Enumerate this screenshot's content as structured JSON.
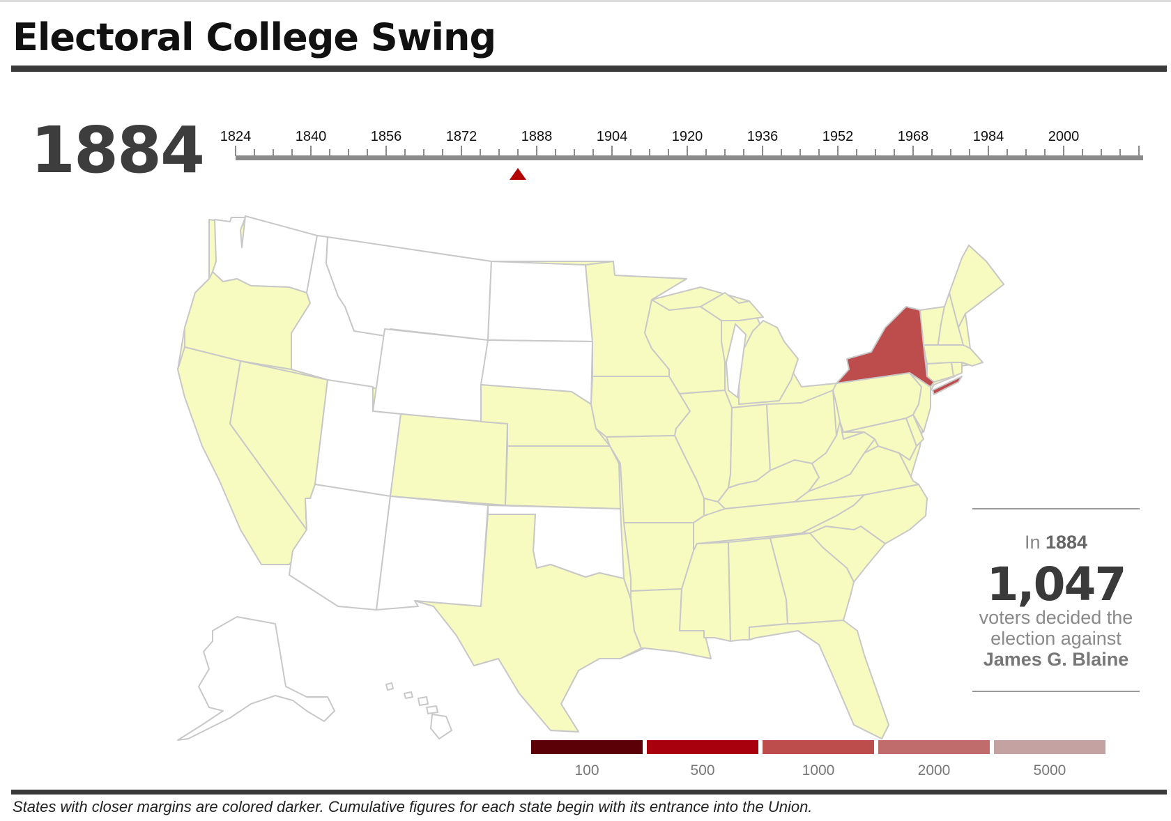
{
  "title": "Electoral College Swing",
  "selected_year": "1884",
  "timeline": {
    "ticks": [
      "1824",
      "1840",
      "1856",
      "1872",
      "1888",
      "1904",
      "1920",
      "1936",
      "1952",
      "1968",
      "1984",
      "2000"
    ],
    "start": 1824,
    "end": 2016,
    "minor_step": 4,
    "selected": 1884
  },
  "summary": {
    "in_label": "In",
    "year": "1884",
    "count": "1,047",
    "description": "voters decided the election against",
    "candidate": "James G. Blaine"
  },
  "legend": [
    {
      "label": "100",
      "color": "#5b0006"
    },
    {
      "label": "500",
      "color": "#a8000c"
    },
    {
      "label": "1000",
      "color": "#bd4c4c"
    },
    {
      "label": "2000",
      "color": "#c06c6c"
    },
    {
      "label": "5000",
      "color": "#c4a2a2"
    }
  ],
  "colors": {
    "union_state": "#f7fbbf",
    "non_state": "#ffffff",
    "decisive_state": "#bd4c4c",
    "marker": "#b30000",
    "timeline_bar": "#8a8a8a"
  },
  "map_states": [
    {
      "state": "Washington",
      "status": "not-in-union"
    },
    {
      "state": "Oregon",
      "status": "union"
    },
    {
      "state": "California",
      "status": "union"
    },
    {
      "state": "Nevada",
      "status": "union"
    },
    {
      "state": "Idaho",
      "status": "not-in-union"
    },
    {
      "state": "Montana",
      "status": "not-in-union"
    },
    {
      "state": "Wyoming",
      "status": "not-in-union"
    },
    {
      "state": "Utah",
      "status": "not-in-union"
    },
    {
      "state": "Arizona",
      "status": "not-in-union"
    },
    {
      "state": "Colorado",
      "status": "union"
    },
    {
      "state": "New Mexico",
      "status": "not-in-union"
    },
    {
      "state": "North Dakota",
      "status": "not-in-union"
    },
    {
      "state": "South Dakota",
      "status": "not-in-union"
    },
    {
      "state": "Nebraska",
      "status": "union"
    },
    {
      "state": "Kansas",
      "status": "union"
    },
    {
      "state": "Oklahoma",
      "status": "not-in-union"
    },
    {
      "state": "Texas",
      "status": "union"
    },
    {
      "state": "Minnesota",
      "status": "union"
    },
    {
      "state": "Iowa",
      "status": "union"
    },
    {
      "state": "Missouri",
      "status": "union"
    },
    {
      "state": "Arkansas",
      "status": "union"
    },
    {
      "state": "Louisiana",
      "status": "union"
    },
    {
      "state": "Wisconsin",
      "status": "union"
    },
    {
      "state": "Illinois",
      "status": "union"
    },
    {
      "state": "Michigan",
      "status": "union"
    },
    {
      "state": "Indiana",
      "status": "union"
    },
    {
      "state": "Ohio",
      "status": "union"
    },
    {
      "state": "Kentucky",
      "status": "union"
    },
    {
      "state": "Tennessee",
      "status": "union"
    },
    {
      "state": "Mississippi",
      "status": "union"
    },
    {
      "state": "Alabama",
      "status": "union"
    },
    {
      "state": "Georgia",
      "status": "union"
    },
    {
      "state": "Florida",
      "status": "union"
    },
    {
      "state": "South Carolina",
      "status": "union"
    },
    {
      "state": "North Carolina",
      "status": "union"
    },
    {
      "state": "Virginia",
      "status": "union"
    },
    {
      "state": "West Virginia",
      "status": "union"
    },
    {
      "state": "Maryland",
      "status": "union"
    },
    {
      "state": "Delaware",
      "status": "union"
    },
    {
      "state": "Pennsylvania",
      "status": "union"
    },
    {
      "state": "New Jersey",
      "status": "union"
    },
    {
      "state": "New York",
      "status": "decisive"
    },
    {
      "state": "Connecticut",
      "status": "union"
    },
    {
      "state": "Rhode Island",
      "status": "union"
    },
    {
      "state": "Massachusetts",
      "status": "union"
    },
    {
      "state": "Vermont",
      "status": "union"
    },
    {
      "state": "New Hampshire",
      "status": "union"
    },
    {
      "state": "Maine",
      "status": "union"
    },
    {
      "state": "Alaska",
      "status": "not-in-union"
    },
    {
      "state": "Hawaii",
      "status": "not-in-union"
    }
  ],
  "footnote": "States with closer margins are colored darker. Cumulative figures for each state begin with its entrance into the Union."
}
